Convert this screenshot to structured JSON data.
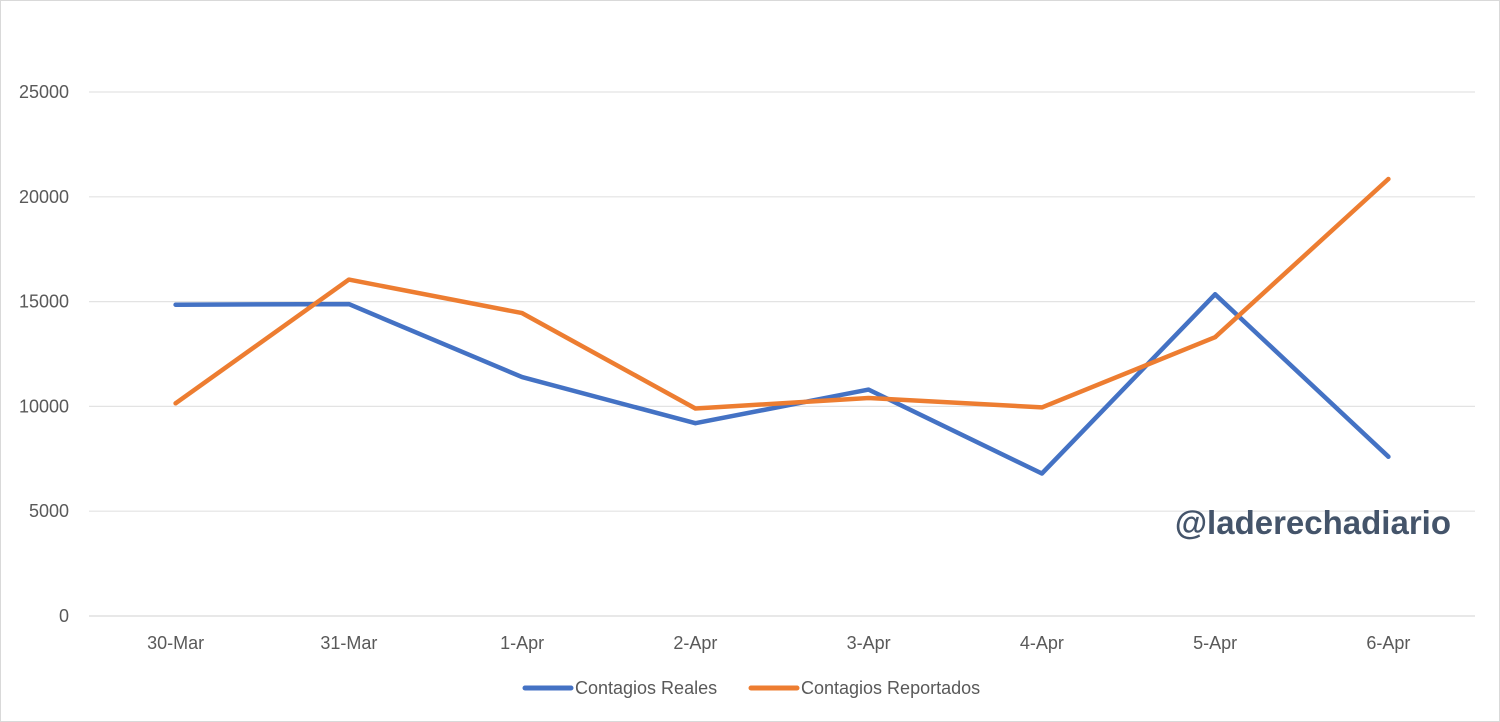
{
  "chart_data": {
    "type": "line",
    "categories": [
      "30-Mar",
      "31-Mar",
      "1-Apr",
      "2-Apr",
      "3-Apr",
      "4-Apr",
      "5-Apr",
      "6-Apr"
    ],
    "series": [
      {
        "name": "Contagios Reales",
        "color": "#4472c4",
        "values": [
          14850,
          14880,
          11400,
          9200,
          10800,
          6800,
          15350,
          7600
        ]
      },
      {
        "name": "Contagios Reportados",
        "color": "#ed7d31",
        "values": [
          10150,
          16050,
          14450,
          9900,
          10400,
          9950,
          13300,
          20850
        ]
      }
    ],
    "y_ticks": [
      "0",
      "5000",
      "10000",
      "15000",
      "20000",
      "25000"
    ],
    "ylim": [
      0,
      25000
    ],
    "grid": true,
    "legend_position": "bottom",
    "watermark": "@laderechadiario",
    "title": "",
    "xlabel": "",
    "ylabel": ""
  }
}
